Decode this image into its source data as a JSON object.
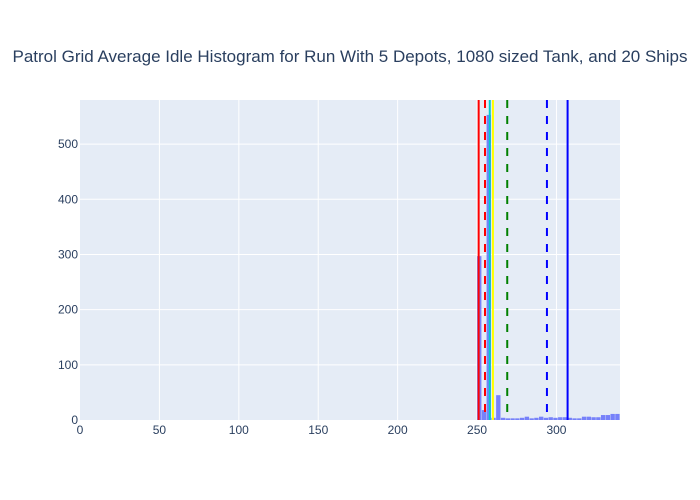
{
  "chart_data": {
    "type": "bar",
    "title": "Patrol Grid Average Idle Histogram for Run With 5 Depots, 1080 sized Tank, and 20 Ships",
    "xlabel": "",
    "ylabel": "",
    "xlim": [
      0,
      340
    ],
    "ylim": [
      0,
      580
    ],
    "x_ticks": [
      0,
      50,
      100,
      150,
      200,
      250,
      300
    ],
    "y_ticks": [
      0,
      100,
      200,
      300,
      400,
      500
    ],
    "bin_width": 3,
    "bins": [
      {
        "start": 250,
        "value": 297
      },
      {
        "start": 253,
        "value": 18
      },
      {
        "start": 256,
        "value": 553
      },
      {
        "start": 259,
        "value": 4
      },
      {
        "start": 262,
        "value": 45
      },
      {
        "start": 265,
        "value": 4
      },
      {
        "start": 268,
        "value": 3
      },
      {
        "start": 271,
        "value": 3
      },
      {
        "start": 274,
        "value": 3
      },
      {
        "start": 277,
        "value": 4
      },
      {
        "start": 280,
        "value": 6
      },
      {
        "start": 283,
        "value": 3
      },
      {
        "start": 286,
        "value": 4
      },
      {
        "start": 289,
        "value": 6
      },
      {
        "start": 292,
        "value": 4
      },
      {
        "start": 295,
        "value": 5
      },
      {
        "start": 298,
        "value": 4
      },
      {
        "start": 301,
        "value": 5
      },
      {
        "start": 304,
        "value": 5
      },
      {
        "start": 307,
        "value": 4
      },
      {
        "start": 310,
        "value": 3
      },
      {
        "start": 313,
        "value": 3
      },
      {
        "start": 316,
        "value": 6
      },
      {
        "start": 319,
        "value": 6
      },
      {
        "start": 322,
        "value": 5
      },
      {
        "start": 325,
        "value": 5
      },
      {
        "start": 328,
        "value": 9
      },
      {
        "start": 331,
        "value": 9
      },
      {
        "start": 334,
        "value": 11
      },
      {
        "start": 337,
        "value": 11
      }
    ],
    "bar_color": "#636efa",
    "vlines": [
      {
        "x": 251,
        "color": "#ff0000",
        "dash": "solid"
      },
      {
        "x": 255,
        "color": "#ff0000",
        "dash": "dash"
      },
      {
        "x": 258,
        "color": "#00cccc",
        "dash": "solid"
      },
      {
        "x": 260,
        "color": "#ffff00",
        "dash": "solid"
      },
      {
        "x": 269,
        "color": "#008000",
        "dash": "dash"
      },
      {
        "x": 294,
        "color": "#0000ff",
        "dash": "dash"
      },
      {
        "x": 307,
        "color": "#0000ff",
        "dash": "solid"
      }
    ],
    "grid": true,
    "legend": "none"
  }
}
